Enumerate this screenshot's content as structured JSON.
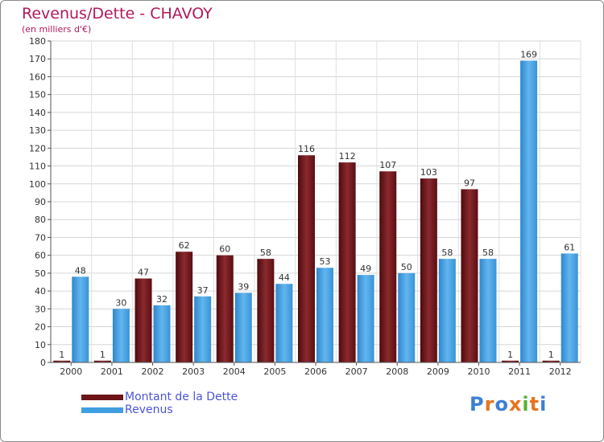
{
  "title": "Revenus/Dette - CHAVOY",
  "subtitle": "(en milliers d'€)",
  "logo_text": "Proxiti",
  "legend": [
    {
      "label": "Montant de la Dette",
      "color": "#6e1418"
    },
    {
      "label": "Revenus",
      "color": "#3f9ee0"
    }
  ],
  "colors": {
    "dette": "#6e1418",
    "revenus": "#3f9ee0",
    "title": "#b0195e",
    "legend_text": "#4a55d8"
  },
  "chart_data": {
    "type": "bar",
    "title": "Revenus/Dette - CHAVOY",
    "xlabel": "",
    "ylabel": "(en milliers d'€)",
    "ylim": [
      0,
      180
    ],
    "yticks": [
      0,
      10,
      20,
      30,
      40,
      50,
      60,
      70,
      80,
      90,
      100,
      110,
      120,
      130,
      140,
      150,
      160,
      170,
      180
    ],
    "grid": true,
    "legend_position": "bottom-left",
    "categories": [
      "2000",
      "2001",
      "2002",
      "2003",
      "2004",
      "2005",
      "2006",
      "2007",
      "2008",
      "2009",
      "2010",
      "2011",
      "2012"
    ],
    "series": [
      {
        "name": "Montant de la Dette",
        "values": [
          1,
          1,
          47,
          62,
          60,
          58,
          116,
          112,
          107,
          103,
          97,
          1,
          1
        ]
      },
      {
        "name": "Revenus",
        "values": [
          48,
          30,
          32,
          37,
          39,
          44,
          53,
          49,
          50,
          58,
          58,
          169,
          61
        ]
      }
    ]
  }
}
